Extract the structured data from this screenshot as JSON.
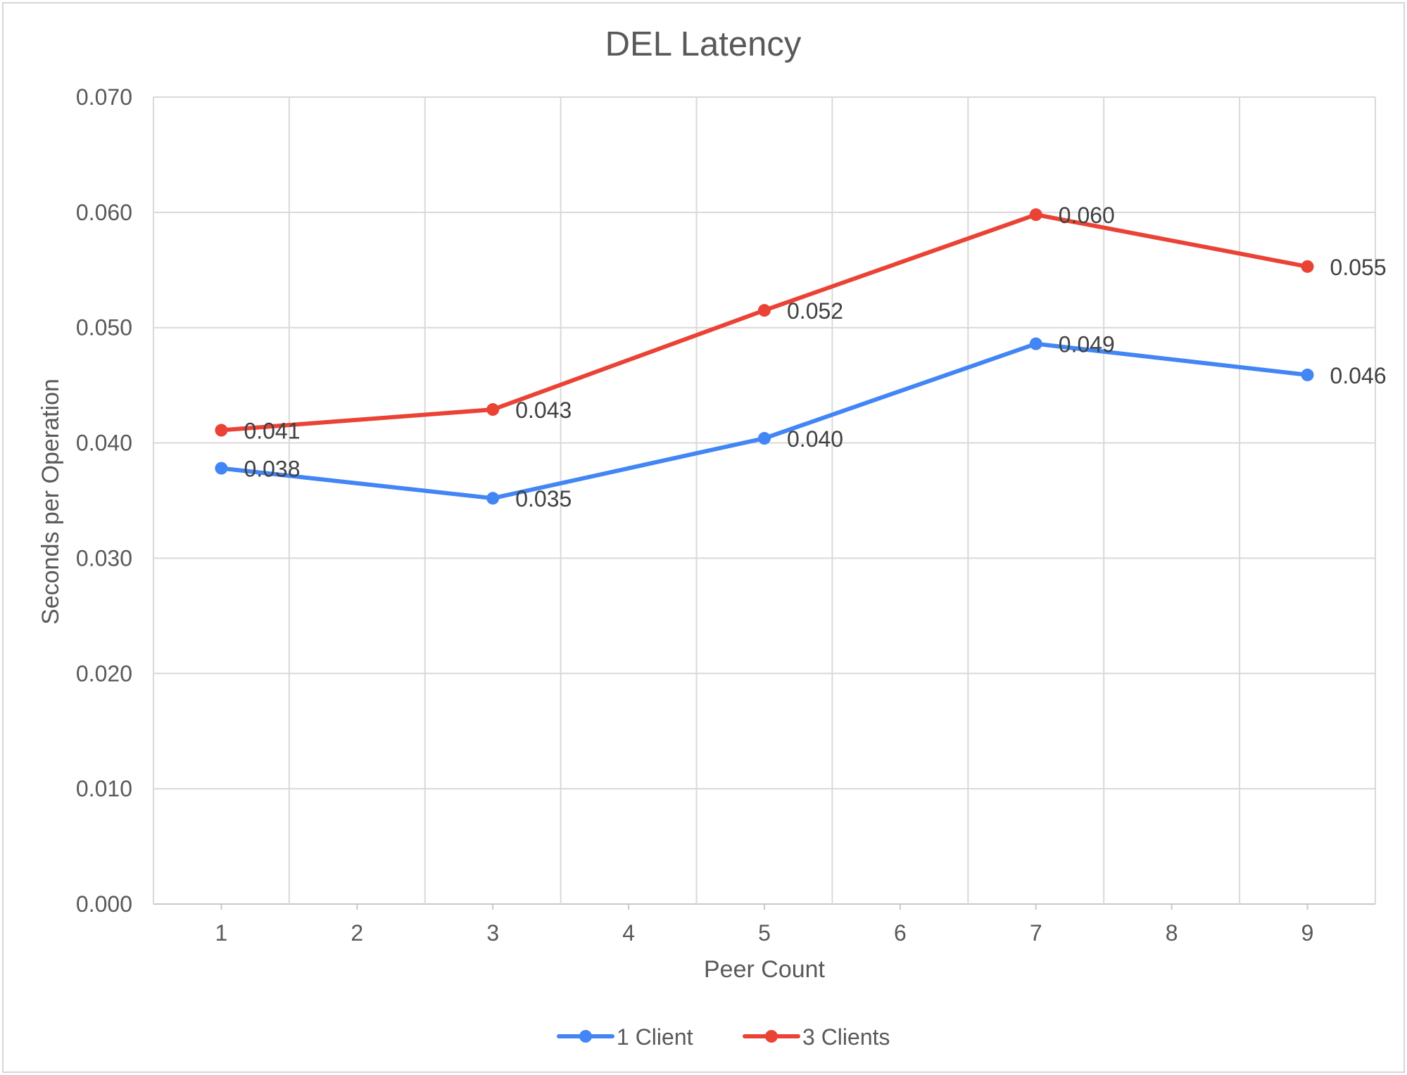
{
  "chart_data": {
    "type": "line",
    "title": "DEL Latency",
    "xlabel": "Peer Count",
    "ylabel": "Seconds per Operation",
    "x_ticks": [
      "1",
      "2",
      "3",
      "4",
      "5",
      "6",
      "7",
      "8",
      "9"
    ],
    "x_range": [
      0.5,
      9.5
    ],
    "y_ticks": [
      "0.000",
      "0.010",
      "0.020",
      "0.030",
      "0.040",
      "0.050",
      "0.060",
      "0.070"
    ],
    "ylim": [
      0,
      0.07
    ],
    "grid": true,
    "legend_position": "bottom",
    "series": [
      {
        "name": "1 Client",
        "color": "#4285f4",
        "x": [
          1,
          3,
          5,
          7,
          9
        ],
        "y": [
          0.0378,
          0.0352,
          0.0404,
          0.0486,
          0.0459
        ],
        "labels": [
          "0.038",
          "0.035",
          "0.040",
          "0.049",
          "0.046"
        ]
      },
      {
        "name": "3 Clients",
        "color": "#ea4335",
        "x": [
          1,
          3,
          5,
          7,
          9
        ],
        "y": [
          0.0411,
          0.0429,
          0.0515,
          0.0598,
          0.0553
        ],
        "labels": [
          "0.041",
          "0.043",
          "0.052",
          "0.060",
          "0.055"
        ]
      }
    ]
  }
}
